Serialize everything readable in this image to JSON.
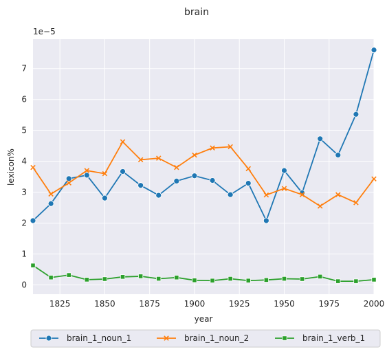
{
  "chart_data": {
    "type": "line",
    "title": "brain",
    "xlabel": "year",
    "ylabel": "lexicon%",
    "y_offset_label": "1e−5",
    "xlim": [
      1810,
      2000
    ],
    "ylim": [
      -0.3,
      7.95
    ],
    "x_ticks": [
      1825,
      1850,
      1875,
      1900,
      1925,
      1950,
      1975,
      2000
    ],
    "y_ticks": [
      0,
      1,
      2,
      3,
      4,
      5,
      6,
      7
    ],
    "grid": true,
    "legend_position": "bottom-center",
    "x": [
      1810,
      1820,
      1830,
      1840,
      1850,
      1860,
      1870,
      1880,
      1890,
      1900,
      1910,
      1920,
      1930,
      1940,
      1950,
      1960,
      1970,
      1980,
      1990,
      2000
    ],
    "series": [
      {
        "name": "brain_1_noun_1",
        "color": "#1f77b4",
        "marker": "circle",
        "values": [
          2.08,
          2.63,
          3.44,
          3.55,
          2.81,
          3.67,
          3.22,
          2.9,
          3.36,
          3.53,
          3.38,
          2.92,
          3.29,
          2.08,
          3.7,
          2.98,
          4.73,
          4.2,
          5.52,
          7.6
        ]
      },
      {
        "name": "brain_1_noun_2",
        "color": "#ff7f0e",
        "marker": "x",
        "values": [
          3.8,
          2.94,
          3.3,
          3.7,
          3.6,
          4.63,
          4.05,
          4.1,
          3.8,
          4.2,
          4.43,
          4.47,
          3.76,
          2.91,
          3.12,
          2.92,
          2.55,
          2.92,
          2.66,
          3.43
        ]
      },
      {
        "name": "brain_1_verb_1",
        "color": "#2ca02c",
        "marker": "square",
        "values": [
          0.63,
          0.24,
          0.32,
          0.17,
          0.19,
          0.26,
          0.28,
          0.2,
          0.24,
          0.15,
          0.14,
          0.2,
          0.14,
          0.16,
          0.2,
          0.19,
          0.27,
          0.12,
          0.12,
          0.17
        ]
      }
    ]
  },
  "style": {
    "plot_background": "#eaeaf2",
    "grid_color": "#ffffff",
    "text_color": "#262626"
  }
}
